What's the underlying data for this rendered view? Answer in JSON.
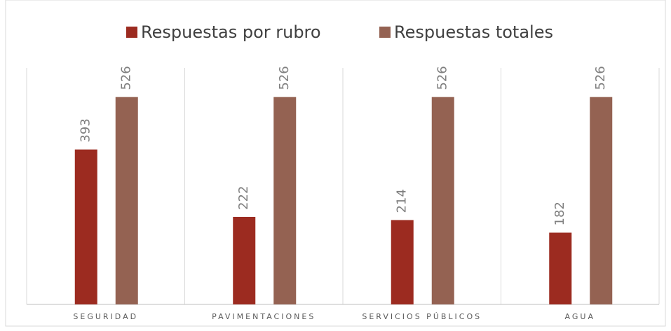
{
  "chart_data": {
    "type": "bar",
    "categories": [
      "SEGURIDAD",
      "PAVIMENTACIONES",
      "SERVICIOS PÚBLICOS",
      "AGUA"
    ],
    "series": [
      {
        "name": "Respuestas por rubro",
        "color": "#9c2b20",
        "values": [
          393,
          222,
          214,
          182
        ]
      },
      {
        "name": "Respuestas totales",
        "color": "#946252",
        "values": [
          526,
          526,
          526,
          526
        ]
      }
    ],
    "ylim": [
      0,
      600
    ],
    "legend": "top"
  }
}
